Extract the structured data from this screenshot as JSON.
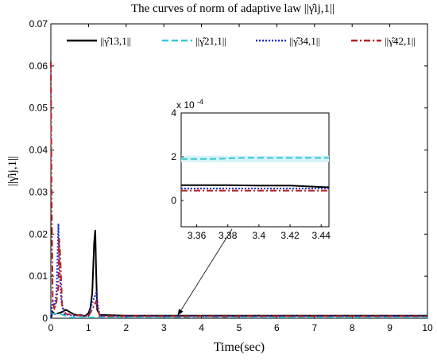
{
  "chart_data": {
    "type": "line",
    "title": "The curves of norm of adaptive law ||γ̂ij,1||",
    "xlabel": "Time(sec)",
    "ylabel": "||γ̂ij,1||",
    "xlim": [
      0,
      10
    ],
    "ylim": [
      0,
      0.07
    ],
    "xticks": [
      "0",
      "1",
      "2",
      "3",
      "4",
      "5",
      "6",
      "7",
      "8",
      "9",
      "10"
    ],
    "yticks": [
      "0",
      "0.01",
      "0.02",
      "0.03",
      "0.04",
      "0.05",
      "0.06",
      "0.07"
    ],
    "grid": false,
    "legend_position": "top",
    "series": [
      {
        "name": "||γ̂13,1||",
        "color": "#000000",
        "style": "solid",
        "points": [
          [
            0,
            0.0
          ],
          [
            0.05,
            0.0015
          ],
          [
            0.1,
            0.001
          ],
          [
            0.2,
            0.0012
          ],
          [
            0.3,
            0.0015
          ],
          [
            0.4,
            0.002
          ],
          [
            0.5,
            0.0015
          ],
          [
            0.6,
            0.001
          ],
          [
            0.7,
            0.0007
          ],
          [
            0.8,
            0.0008
          ],
          [
            0.9,
            0.0005
          ],
          [
            1.0,
            0.0012
          ],
          [
            1.05,
            0.0025
          ],
          [
            1.1,
            0.006
          ],
          [
            1.15,
            0.018
          ],
          [
            1.18,
            0.021
          ],
          [
            1.2,
            0.012
          ],
          [
            1.23,
            0.002
          ],
          [
            1.3,
            0.0008
          ],
          [
            2,
            0.0006
          ],
          [
            3,
            0.0006
          ],
          [
            4,
            0.0006
          ],
          [
            5,
            0.0006
          ],
          [
            6,
            0.0006
          ],
          [
            7,
            0.0006
          ],
          [
            8,
            0.0006
          ],
          [
            9,
            0.0006
          ],
          [
            10,
            0.0006
          ]
        ]
      },
      {
        "name": "||γ̂21,1||",
        "color": "#35c8d6",
        "style": "dashed",
        "points": [
          [
            0,
            0.001
          ],
          [
            0.2,
            0.0012
          ],
          [
            0.5,
            0.0002
          ],
          [
            1,
            0.0002
          ],
          [
            3,
            0.0002
          ],
          [
            4,
            0.0004
          ],
          [
            5,
            0.0002
          ],
          [
            7,
            0.0002
          ],
          [
            10,
            0.0002
          ]
        ]
      },
      {
        "name": "||γ̂34,1||",
        "color": "#1f2bd6",
        "style": "dotted",
        "points": [
          [
            0,
            0.0
          ],
          [
            0.05,
            0.004
          ],
          [
            0.1,
            0.003
          ],
          [
            0.15,
            0.006
          ],
          [
            0.2,
            0.0225
          ],
          [
            0.23,
            0.012
          ],
          [
            0.28,
            0.004
          ],
          [
            0.35,
            0.001
          ],
          [
            0.6,
            0.0006
          ],
          [
            1.0,
            0.0006
          ],
          [
            1.15,
            0.005
          ],
          [
            1.2,
            0.006
          ],
          [
            1.3,
            0.0005
          ],
          [
            2,
            0.0005
          ],
          [
            10,
            0.0005
          ]
        ]
      },
      {
        "name": "||γ̂42,1||",
        "color": "#b22222",
        "style": "dashdot",
        "points": [
          [
            0,
            0.061
          ],
          [
            0.02,
            0.03
          ],
          [
            0.05,
            0.004
          ],
          [
            0.1,
            0.002
          ],
          [
            0.15,
            0.004
          ],
          [
            0.2,
            0.0075
          ],
          [
            0.22,
            0.019
          ],
          [
            0.25,
            0.015
          ],
          [
            0.3,
            0.003
          ],
          [
            0.4,
            0.001
          ],
          [
            1.0,
            0.0005
          ],
          [
            1.15,
            0.003
          ],
          [
            1.2,
            0.004
          ],
          [
            1.3,
            0.0005
          ],
          [
            2,
            0.0005
          ],
          [
            10,
            0.0005
          ]
        ]
      }
    ],
    "inset": {
      "xlim": [
        3.35,
        3.445
      ],
      "ylim": [
        -1.2,
        4
      ],
      "multiplier_label": "x 10",
      "multiplier_exponent": "-4",
      "xticks": [
        "3.36",
        "3.38",
        "3.4",
        "3.42",
        "3.44"
      ],
      "yticks": [
        "0",
        "2",
        "4"
      ],
      "series": [
        {
          "color": "#000000",
          "style": "solid",
          "points": [
            [
              3.35,
              0.7
            ],
            [
              3.38,
              0.7
            ],
            [
              3.4,
              0.68
            ],
            [
              3.42,
              0.68
            ],
            [
              3.445,
              0.6
            ]
          ]
        },
        {
          "color": "#35c8d6",
          "style": "dashed",
          "points": [
            [
              3.35,
              1.9
            ],
            [
              3.37,
              1.9
            ],
            [
              3.39,
              1.95
            ],
            [
              3.42,
              1.95
            ],
            [
              3.445,
              1.95
            ]
          ]
        },
        {
          "color": "#1f2bd6",
          "style": "dotted",
          "points": [
            [
              3.35,
              0.55
            ],
            [
              3.445,
              0.55
            ]
          ]
        },
        {
          "color": "#b22222",
          "style": "dashdot",
          "points": [
            [
              3.35,
              0.45
            ],
            [
              3.445,
              0.45
            ]
          ]
        }
      ],
      "arrow_target": [
        3.4,
        0
      ]
    }
  }
}
